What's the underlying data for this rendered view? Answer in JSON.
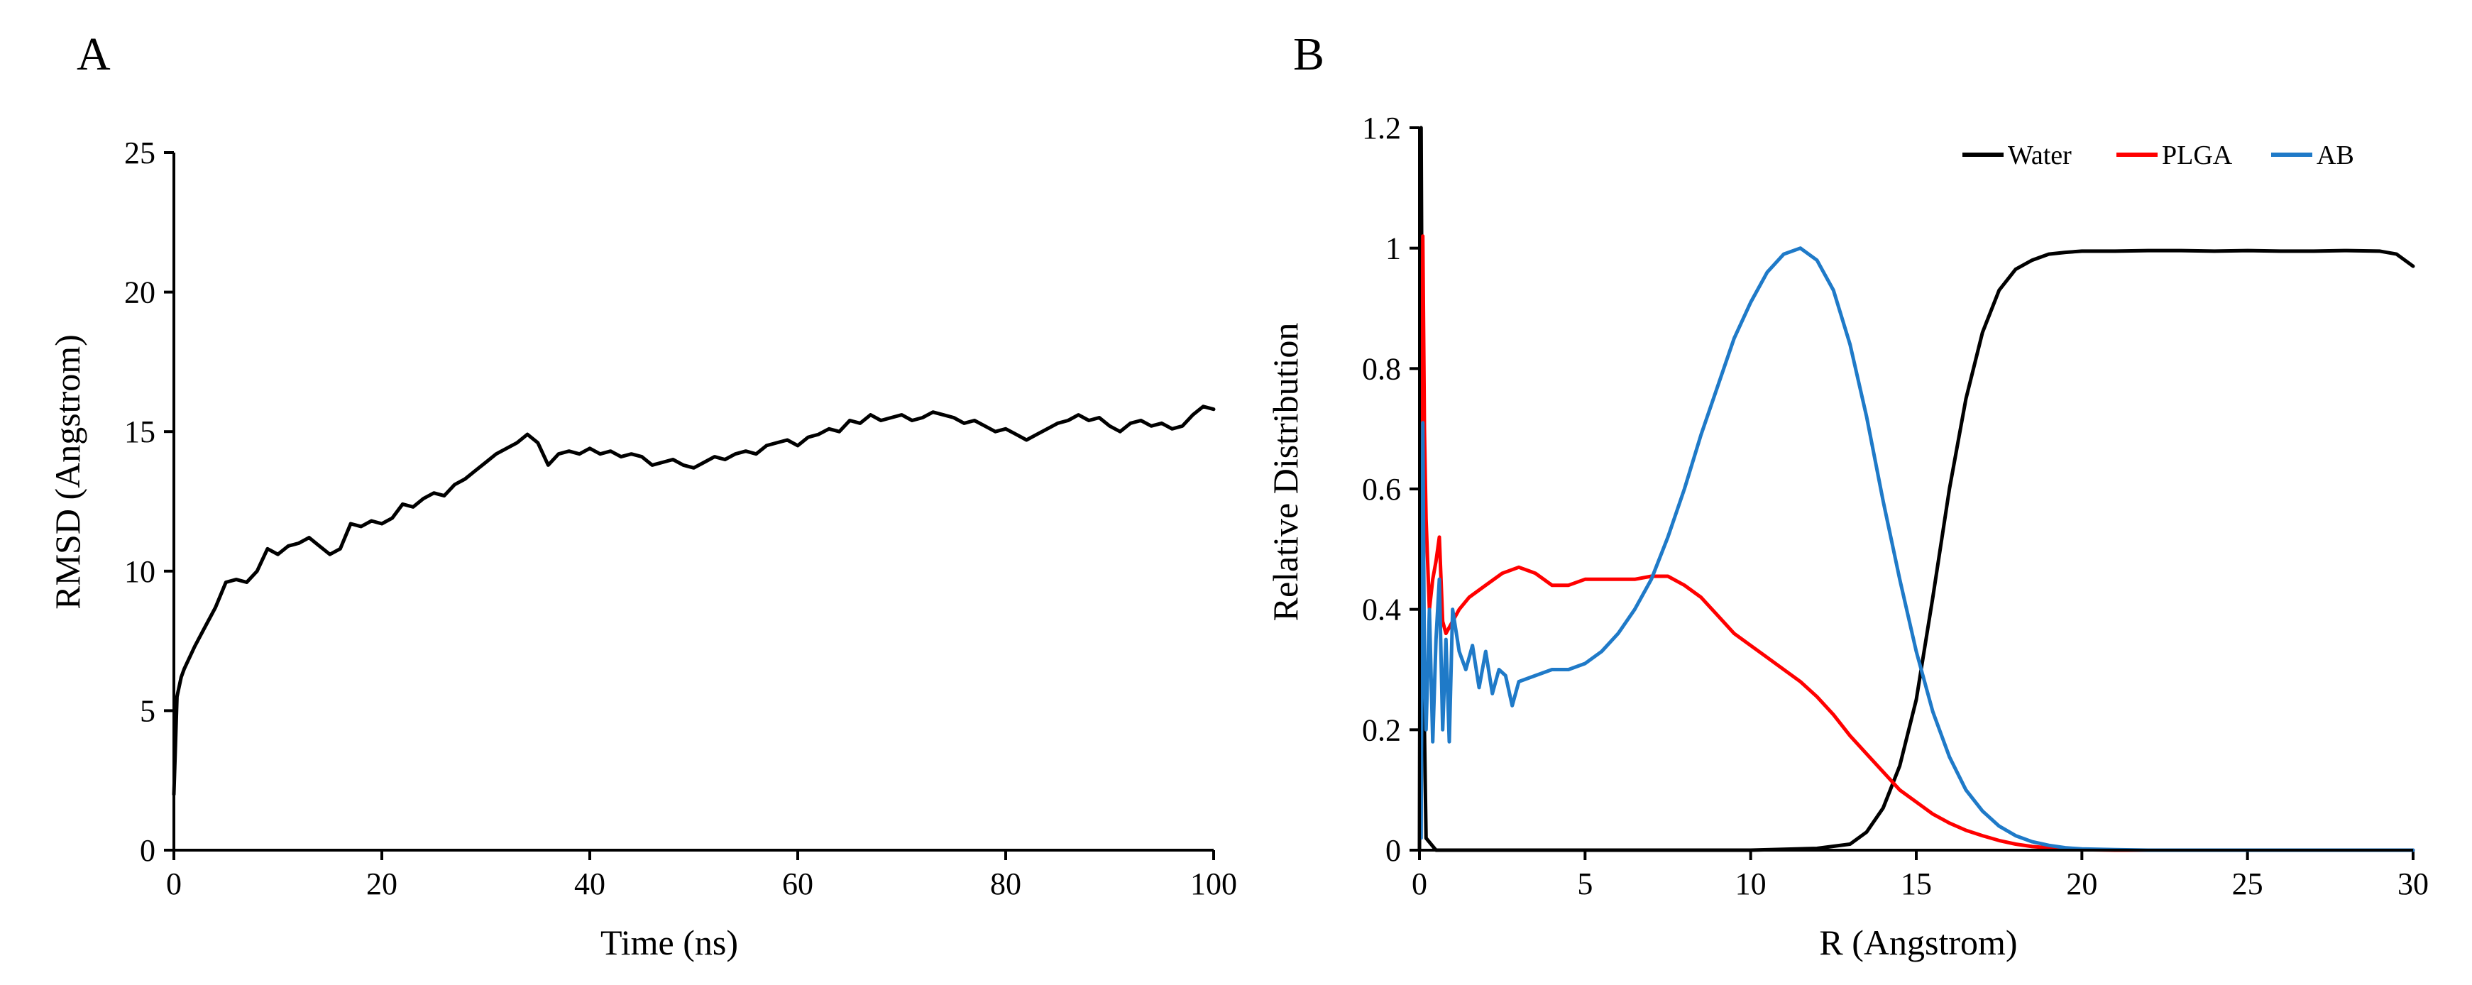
{
  "chart_data": [
    {
      "panel_label": "A",
      "type": "line",
      "title": "",
      "xlabel": "Time (ns)",
      "ylabel": "RMSD (Angstrom)",
      "xlim": [
        0,
        100
      ],
      "ylim": [
        0,
        25
      ],
      "xticks": [
        0,
        20,
        40,
        60,
        80,
        100
      ],
      "yticks": [
        0,
        5,
        10,
        15,
        20,
        25
      ],
      "grid": false,
      "series": [
        {
          "name": "RMSD",
          "color": "#000000",
          "x": [
            0,
            0.3,
            0.7,
            1,
            2,
            3,
            4,
            5,
            6,
            7,
            8,
            9,
            10,
            11,
            12,
            13,
            14,
            15,
            16,
            17,
            18,
            19,
            20,
            21,
            22,
            23,
            24,
            25,
            26,
            27,
            28,
            29,
            30,
            31,
            32,
            33,
            34,
            35,
            36,
            37,
            38,
            39,
            40,
            41,
            42,
            43,
            44,
            45,
            46,
            47,
            48,
            49,
            50,
            51,
            52,
            53,
            54,
            55,
            56,
            57,
            58,
            59,
            60,
            61,
            62,
            63,
            64,
            65,
            66,
            67,
            68,
            69,
            70,
            71,
            72,
            73,
            74,
            75,
            76,
            77,
            78,
            79,
            80,
            81,
            82,
            83,
            84,
            85,
            86,
            87,
            88,
            89,
            90,
            91,
            92,
            93,
            94,
            95,
            96,
            97,
            98,
            99,
            100
          ],
          "y": [
            2.0,
            5.5,
            6.2,
            6.5,
            7.3,
            8.0,
            8.7,
            9.6,
            9.7,
            9.6,
            10.0,
            10.8,
            10.6,
            10.9,
            11.0,
            11.2,
            10.9,
            10.6,
            10.8,
            11.7,
            11.6,
            11.8,
            11.7,
            11.9,
            12.4,
            12.3,
            12.6,
            12.8,
            12.7,
            13.1,
            13.3,
            13.6,
            13.9,
            14.2,
            14.4,
            14.6,
            14.9,
            14.6,
            13.8,
            14.2,
            14.3,
            14.2,
            14.4,
            14.2,
            14.3,
            14.1,
            14.2,
            14.1,
            13.8,
            13.9,
            14.0,
            13.8,
            13.7,
            13.9,
            14.1,
            14.0,
            14.2,
            14.3,
            14.2,
            14.5,
            14.6,
            14.7,
            14.5,
            14.8,
            14.9,
            15.1,
            15.0,
            15.4,
            15.3,
            15.6,
            15.4,
            15.5,
            15.6,
            15.4,
            15.5,
            15.7,
            15.6,
            15.5,
            15.3,
            15.4,
            15.2,
            15.0,
            15.1,
            14.9,
            14.7,
            14.9,
            15.1,
            15.3,
            15.4,
            15.6,
            15.4,
            15.5,
            15.2,
            15.0,
            15.3,
            15.4,
            15.2,
            15.3,
            15.1,
            15.2,
            15.6,
            15.9,
            15.8
          ]
        }
      ]
    },
    {
      "panel_label": "B",
      "type": "line",
      "title": "",
      "xlabel": "R (Angstrom)",
      "ylabel": "Relative Distribution",
      "xlim": [
        0,
        30
      ],
      "ylim": [
        0,
        1.2
      ],
      "xticks": [
        0,
        5,
        10,
        15,
        20,
        25,
        30
      ],
      "yticks": [
        0,
        0.2,
        0.4,
        0.6,
        0.8,
        1,
        1.2
      ],
      "ytick_labels": [
        "0",
        "0.2",
        "0.4",
        "0.6",
        "0.8",
        "1",
        "1.2"
      ],
      "grid": false,
      "legend_position": "top-right",
      "series": [
        {
          "name": "Water",
          "color": "#000000",
          "x": [
            0,
            0.05,
            0.1,
            0.15,
            0.2,
            0.5,
            1,
            5,
            10,
            12,
            13,
            13.5,
            14,
            14.5,
            15,
            15.5,
            16,
            16.5,
            17,
            17.5,
            18,
            18.5,
            19,
            19.5,
            20,
            21,
            22,
            23,
            24,
            25,
            26,
            27,
            28,
            29,
            29.5,
            30
          ],
          "y": [
            0,
            1.2,
            0.6,
            0.2,
            0.02,
            0,
            0,
            0,
            0,
            0.003,
            0.01,
            0.03,
            0.07,
            0.14,
            0.25,
            0.42,
            0.6,
            0.75,
            0.86,
            0.93,
            0.965,
            0.98,
            0.99,
            0.993,
            0.995,
            0.995,
            0.996,
            0.996,
            0.995,
            0.996,
            0.995,
            0.995,
            0.996,
            0.995,
            0.99,
            0.97
          ]
        },
        {
          "name": "PLGA",
          "color": "#ff0000",
          "x": [
            0.05,
            0.1,
            0.15,
            0.2,
            0.3,
            0.4,
            0.5,
            0.6,
            0.7,
            0.8,
            1,
            1.2,
            1.5,
            2,
            2.5,
            3,
            3.5,
            4,
            4.5,
            5,
            5.5,
            6,
            6.5,
            7,
            7.5,
            8,
            8.5,
            9,
            9.5,
            10,
            10.5,
            11,
            11.5,
            12,
            12.5,
            13,
            13.5,
            14,
            14.5,
            15,
            15.5,
            16,
            16.5,
            17,
            17.5,
            18,
            18.5,
            19,
            19.5,
            20,
            21,
            22,
            25,
            30
          ],
          "y": [
            0.4,
            1.02,
            0.7,
            0.55,
            0.4,
            0.45,
            0.48,
            0.52,
            0.38,
            0.36,
            0.38,
            0.4,
            0.42,
            0.44,
            0.46,
            0.47,
            0.46,
            0.44,
            0.44,
            0.45,
            0.45,
            0.45,
            0.45,
            0.455,
            0.455,
            0.44,
            0.42,
            0.39,
            0.36,
            0.34,
            0.32,
            0.3,
            0.28,
            0.255,
            0.225,
            0.19,
            0.16,
            0.13,
            0.1,
            0.08,
            0.06,
            0.045,
            0.033,
            0.024,
            0.016,
            0.01,
            0.006,
            0.004,
            0.002,
            0.001,
            0,
            0,
            0,
            0
          ]
        },
        {
          "name": "AB",
          "color": "#1f7ac8",
          "x": [
            0.05,
            0.1,
            0.15,
            0.2,
            0.3,
            0.4,
            0.5,
            0.6,
            0.7,
            0.8,
            0.9,
            1,
            1.2,
            1.4,
            1.6,
            1.8,
            2,
            2.2,
            2.4,
            2.6,
            2.8,
            3,
            3.5,
            4,
            4.5,
            5,
            5.5,
            6,
            6.5,
            7,
            7.5,
            8,
            8.5,
            9,
            9.5,
            10,
            10.5,
            11,
            11.5,
            12,
            12.5,
            13,
            13.5,
            14,
            14.5,
            15,
            15.5,
            16,
            16.5,
            17,
            17.5,
            18,
            18.5,
            19,
            19.5,
            20,
            21,
            22,
            25,
            30
          ],
          "y": [
            0.02,
            0.71,
            0.3,
            0.2,
            0.4,
            0.18,
            0.35,
            0.45,
            0.2,
            0.35,
            0.18,
            0.4,
            0.33,
            0.3,
            0.34,
            0.27,
            0.33,
            0.26,
            0.3,
            0.29,
            0.24,
            0.28,
            0.29,
            0.3,
            0.3,
            0.31,
            0.33,
            0.36,
            0.4,
            0.45,
            0.52,
            0.6,
            0.69,
            0.77,
            0.85,
            0.91,
            0.96,
            0.99,
            1.0,
            0.98,
            0.93,
            0.84,
            0.72,
            0.58,
            0.45,
            0.33,
            0.23,
            0.155,
            0.1,
            0.065,
            0.04,
            0.024,
            0.014,
            0.008,
            0.004,
            0.002,
            0.001,
            0,
            0,
            0
          ]
        }
      ]
    }
  ]
}
